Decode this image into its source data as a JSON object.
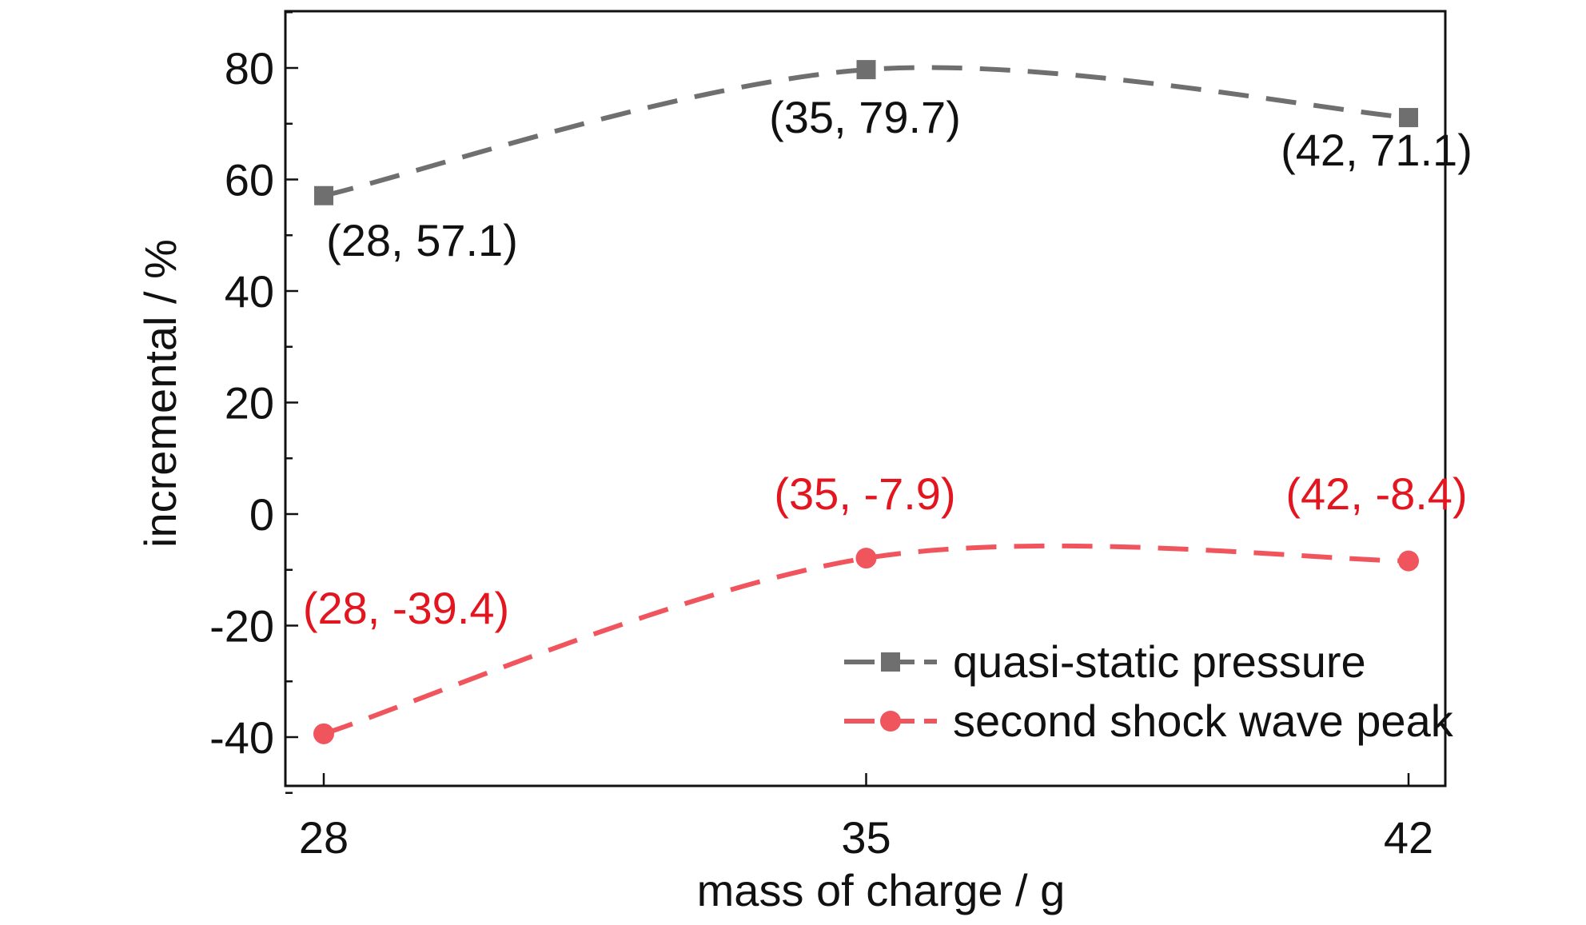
{
  "chart_data": {
    "type": "line",
    "title": "",
    "xlabel": "mass of charge / g",
    "ylabel": "incremental / %",
    "x": [
      28,
      35,
      42
    ],
    "x_ticks": [
      "28",
      "35",
      "42"
    ],
    "y_ticks": [
      "80",
      "60",
      "40",
      "20",
      "0",
      "-20",
      "-40"
    ],
    "xlim": [
      27.5,
      42.5
    ],
    "ylim": [
      -50,
      90
    ],
    "grid": false,
    "legend_position": "bottom-right",
    "series": [
      {
        "name": "quasi-static pressure",
        "marker": "square",
        "line_style": "dashed",
        "color": "#6f6f6f",
        "values": [
          57.1,
          79.7,
          71.1
        ],
        "labels": [
          "(28, 57.1)",
          "(35, 79.7)",
          "(42, 71.1)"
        ],
        "label_color": "#111111"
      },
      {
        "name": "second shock wave peak",
        "marker": "circle",
        "line_style": "dashed",
        "color": "#f0545c",
        "values": [
          -39.4,
          -7.9,
          -8.4
        ],
        "labels": [
          "(28, -39.4)",
          "(35, -7.9)",
          "(42, -8.4)"
        ],
        "label_color": "#e3151f"
      }
    ]
  }
}
